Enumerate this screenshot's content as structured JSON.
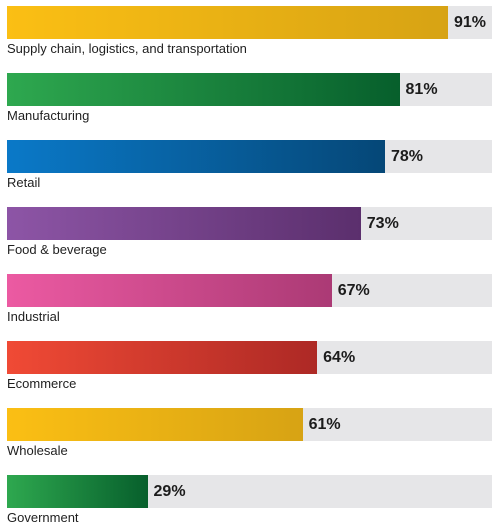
{
  "chart_data": {
    "type": "bar",
    "orientation": "horizontal",
    "categories": [
      "Supply chain, logistics, and transportation",
      "Manufacturing",
      "Retail",
      "Food & beverage",
      "Industrial",
      "Ecommerce",
      "Wholesale",
      "Government"
    ],
    "values": [
      91,
      81,
      78,
      73,
      67,
      64,
      61,
      29
    ],
    "value_labels": [
      "91%",
      "81%",
      "78%",
      "73%",
      "67%",
      "64%",
      "61%",
      "29%"
    ],
    "xlim": [
      0,
      100
    ],
    "unit": "%",
    "grid": false,
    "colors": [
      [
        "#fbbf14",
        "#d7a314"
      ],
      [
        "#2ea84f",
        "#075f2c"
      ],
      [
        "#0a79c8",
        "#054777"
      ],
      [
        "#8d55a6",
        "#5b2f6d"
      ],
      [
        "#ec5aa2",
        "#ab3a75"
      ],
      [
        "#f04a35",
        "#ad2925"
      ],
      [
        "#fbbf14",
        "#d7a314"
      ],
      [
        "#2ea84f",
        "#075f2c"
      ]
    ],
    "track_color": "#e6e6e8"
  }
}
